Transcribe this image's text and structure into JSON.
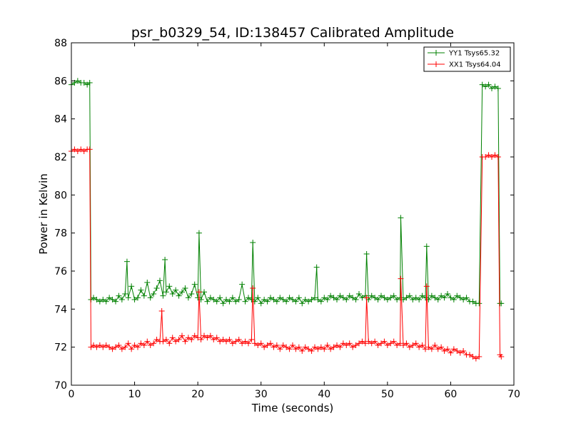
{
  "chart_data": {
    "type": "line",
    "title": "psr_b0329_54, ID:138457 Calibrated Amplitude",
    "xlabel": "Time (seconds)",
    "ylabel": "Power in Kelvin",
    "xlim": [
      0,
      70
    ],
    "ylim": [
      70,
      88
    ],
    "xticks": [
      "0",
      "10",
      "20",
      "30",
      "40",
      "50",
      "60",
      "70"
    ],
    "yticks": [
      "70",
      "72",
      "74",
      "76",
      "78",
      "80",
      "82",
      "84",
      "86",
      "88"
    ],
    "grid": false,
    "legend_position": "top-right",
    "marker": "+",
    "series": [
      {
        "name": "YY1 Tsys65.32",
        "color": "#008000",
        "x": [
          0.0,
          0.5,
          1.0,
          1.5,
          2.0,
          2.5,
          2.9,
          3.1,
          3.5,
          4.0,
          4.5,
          5.0,
          5.5,
          6.0,
          6.5,
          7.0,
          7.5,
          8.0,
          8.5,
          8.8,
          9.0,
          9.5,
          10.0,
          10.5,
          11.0,
          11.5,
          12.0,
          12.5,
          13.0,
          13.5,
          14.0,
          14.5,
          14.8,
          15.0,
          15.5,
          16.0,
          16.5,
          17.0,
          17.5,
          18.0,
          18.5,
          19.0,
          19.5,
          20.0,
          20.2,
          20.5,
          21.0,
          21.5,
          22.0,
          22.5,
          23.0,
          23.5,
          24.0,
          24.5,
          25.0,
          25.5,
          26.0,
          26.5,
          27.0,
          27.5,
          28.0,
          28.5,
          28.7,
          29.0,
          29.5,
          30.0,
          30.5,
          31.0,
          31.5,
          32.0,
          32.5,
          33.0,
          33.5,
          34.0,
          34.5,
          35.0,
          35.5,
          36.0,
          36.5,
          37.0,
          37.5,
          38.0,
          38.5,
          38.8,
          39.0,
          39.5,
          40.0,
          40.5,
          41.0,
          41.5,
          42.0,
          42.5,
          43.0,
          43.5,
          44.0,
          44.5,
          45.0,
          45.5,
          46.0,
          46.5,
          46.7,
          47.0,
          47.5,
          48.0,
          48.5,
          49.0,
          49.5,
          50.0,
          50.5,
          51.0,
          51.5,
          52.0,
          52.1,
          52.5,
          53.0,
          53.5,
          54.0,
          54.5,
          55.0,
          55.5,
          56.0,
          56.2,
          56.5,
          57.0,
          57.5,
          58.0,
          58.5,
          59.0,
          59.5,
          60.0,
          60.5,
          61.0,
          61.5,
          62.0,
          62.5,
          63.0,
          63.5,
          64.0,
          64.5,
          65.0,
          65.5,
          66.0,
          66.5,
          67.0,
          67.5,
          67.8,
          68.0
        ],
        "y": [
          85.8,
          85.9,
          86.0,
          85.9,
          85.9,
          85.8,
          85.9,
          74.5,
          74.6,
          74.5,
          74.4,
          74.5,
          74.4,
          74.6,
          74.5,
          74.4,
          74.7,
          74.5,
          74.8,
          76.5,
          74.6,
          75.2,
          74.5,
          74.6,
          75.0,
          74.7,
          75.4,
          74.6,
          74.8,
          75.1,
          75.5,
          74.7,
          76.6,
          74.9,
          75.2,
          74.8,
          75.0,
          74.7,
          74.9,
          75.1,
          74.6,
          74.8,
          75.3,
          74.6,
          78.0,
          74.5,
          74.9,
          74.4,
          74.6,
          74.5,
          74.4,
          74.6,
          74.3,
          74.5,
          74.4,
          74.6,
          74.4,
          74.5,
          75.3,
          74.4,
          74.6,
          74.5,
          77.5,
          74.4,
          74.6,
          74.3,
          74.5,
          74.4,
          74.6,
          74.5,
          74.4,
          74.6,
          74.5,
          74.4,
          74.6,
          74.5,
          74.4,
          74.6,
          74.3,
          74.5,
          74.4,
          74.5,
          74.6,
          76.2,
          74.5,
          74.4,
          74.6,
          74.5,
          74.7,
          74.6,
          74.5,
          74.7,
          74.6,
          74.5,
          74.7,
          74.6,
          74.5,
          74.8,
          74.6,
          74.7,
          76.9,
          74.5,
          74.7,
          74.6,
          74.5,
          74.7,
          74.6,
          74.5,
          74.6,
          74.7,
          74.5,
          74.6,
          78.8,
          74.5,
          74.6,
          74.7,
          74.5,
          74.6,
          74.5,
          74.7,
          74.6,
          77.3,
          74.5,
          74.7,
          74.6,
          74.5,
          74.7,
          74.6,
          74.8,
          74.6,
          74.5,
          74.7,
          74.6,
          74.5,
          74.6,
          74.4,
          74.4,
          74.3,
          74.3,
          85.8,
          85.7,
          85.8,
          85.6,
          85.7,
          85.6,
          74.3,
          74.3
        ]
      },
      {
        "name": "XX1 Tsys64.04",
        "color": "#ff0000",
        "x": [
          0.0,
          0.5,
          1.0,
          1.5,
          2.0,
          2.5,
          2.9,
          3.1,
          3.5,
          4.0,
          4.5,
          5.0,
          5.5,
          6.0,
          6.5,
          7.0,
          7.5,
          8.0,
          8.5,
          9.0,
          9.5,
          10.0,
          10.5,
          11.0,
          11.5,
          12.0,
          12.5,
          13.0,
          13.5,
          14.0,
          14.3,
          14.5,
          15.0,
          15.5,
          16.0,
          16.5,
          17.0,
          17.5,
          18.0,
          18.5,
          19.0,
          19.5,
          20.0,
          20.2,
          20.5,
          21.0,
          21.5,
          22.0,
          22.5,
          23.0,
          23.5,
          24.0,
          24.5,
          25.0,
          25.5,
          26.0,
          26.5,
          27.0,
          27.5,
          28.0,
          28.5,
          28.7,
          29.0,
          29.5,
          30.0,
          30.5,
          31.0,
          31.5,
          32.0,
          32.5,
          33.0,
          33.5,
          34.0,
          34.5,
          35.0,
          35.5,
          36.0,
          36.5,
          37.0,
          37.5,
          38.0,
          38.5,
          39.0,
          39.5,
          40.0,
          40.5,
          41.0,
          41.5,
          42.0,
          42.5,
          43.0,
          43.5,
          44.0,
          44.5,
          45.0,
          45.5,
          46.0,
          46.5,
          46.7,
          47.0,
          47.5,
          48.0,
          48.5,
          49.0,
          49.5,
          50.0,
          50.5,
          51.0,
          51.5,
          52.0,
          52.1,
          52.5,
          53.0,
          53.5,
          54.0,
          54.5,
          55.0,
          55.5,
          56.0,
          56.2,
          56.5,
          57.0,
          57.5,
          58.0,
          58.5,
          59.0,
          59.5,
          60.0,
          60.5,
          61.0,
          61.5,
          62.0,
          62.5,
          63.0,
          63.5,
          64.0,
          64.5,
          65.0,
          65.5,
          66.0,
          66.5,
          67.0,
          67.5,
          67.8,
          68.0
        ],
        "y": [
          82.3,
          82.4,
          82.3,
          82.4,
          82.3,
          82.4,
          82.4,
          72.0,
          72.1,
          72.0,
          72.1,
          72.0,
          72.1,
          72.0,
          71.9,
          72.0,
          72.1,
          71.9,
          72.0,
          72.2,
          71.9,
          72.1,
          72.0,
          72.2,
          72.1,
          72.3,
          72.1,
          72.2,
          72.4,
          72.3,
          73.9,
          72.3,
          72.4,
          72.2,
          72.5,
          72.3,
          72.4,
          72.6,
          72.3,
          72.5,
          72.4,
          72.6,
          72.5,
          74.9,
          72.4,
          72.6,
          72.5,
          72.6,
          72.4,
          72.5,
          72.3,
          72.4,
          72.3,
          72.4,
          72.2,
          72.3,
          72.4,
          72.2,
          72.3,
          72.2,
          72.4,
          75.1,
          72.2,
          72.1,
          72.2,
          72.0,
          72.1,
          72.2,
          72.0,
          72.1,
          71.9,
          72.1,
          72.0,
          71.9,
          72.1,
          71.9,
          72.0,
          71.8,
          72.0,
          71.9,
          71.8,
          72.0,
          71.9,
          72.0,
          71.9,
          72.1,
          71.9,
          72.0,
          72.1,
          72.0,
          72.2,
          72.1,
          72.2,
          72.0,
          72.1,
          72.2,
          72.3,
          72.2,
          74.6,
          72.3,
          72.2,
          72.3,
          72.1,
          72.2,
          72.3,
          72.1,
          72.2,
          72.3,
          72.1,
          72.2,
          75.6,
          72.1,
          72.2,
          72.0,
          72.1,
          72.2,
          72.0,
          72.1,
          71.9,
          75.2,
          72.0,
          71.9,
          72.1,
          71.9,
          72.0,
          71.8,
          71.9,
          71.7,
          71.9,
          71.8,
          71.7,
          71.8,
          71.6,
          71.6,
          71.5,
          71.4,
          71.5,
          82.0,
          82.0,
          82.1,
          82.0,
          82.1,
          82.0,
          71.6,
          71.5
        ]
      }
    ]
  }
}
